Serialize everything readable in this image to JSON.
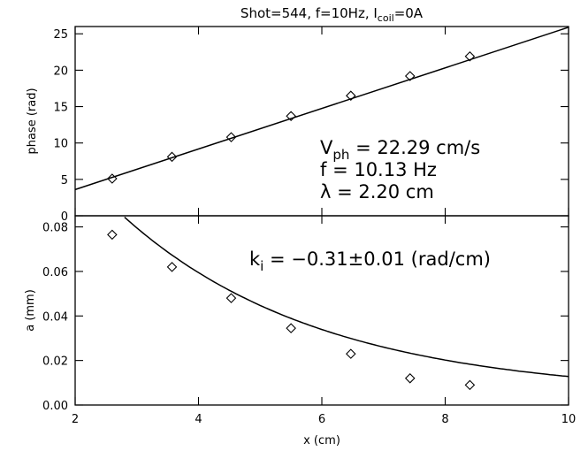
{
  "title": {
    "prefix": "Shot=544, f=10Hz, I",
    "sub": "coil",
    "suffix": "=0A"
  },
  "chart_data": [
    {
      "type": "scatter",
      "panel": "top",
      "ylabel": "phase (rad)",
      "xlim": [
        2,
        10
      ],
      "ylim": [
        0,
        26
      ],
      "yticks": [
        0,
        5,
        10,
        15,
        20,
        25
      ],
      "x": [
        2.6,
        3.57,
        4.53,
        5.5,
        6.47,
        7.43,
        8.4
      ],
      "values": [
        5.1,
        8.1,
        10.8,
        13.7,
        16.5,
        19.2,
        21.9
      ],
      "fit": {
        "type": "linear",
        "x": [
          2,
          10
        ],
        "y": [
          3.6,
          25.9
        ]
      },
      "annotations": {
        "vph": {
          "main": "V",
          "sub": "ph",
          "rest": " = 22.29 cm/s"
        },
        "f": "f = 10.13 Hz",
        "lambda": "λ = 2.20 cm"
      },
      "grid": false
    },
    {
      "type": "scatter",
      "panel": "bottom",
      "xlabel": "x (cm)",
      "ylabel": "a (mm)",
      "xlim": [
        2,
        10
      ],
      "ylim": [
        0,
        0.085
      ],
      "xticks": [
        2,
        4,
        6,
        8,
        10
      ],
      "yticks": [
        "0.00",
        "0.02",
        "0.04",
        "0.06",
        "0.08"
      ],
      "x": [
        2.6,
        3.57,
        4.53,
        5.5,
        6.47,
        7.43,
        8.4
      ],
      "values": [
        0.0765,
        0.062,
        0.048,
        0.0345,
        0.023,
        0.012,
        0.009
      ],
      "fit": {
        "type": "exponential",
        "amplitude": 0.0853,
        "rate": -0.31,
        "x0": 2.6,
        "offset": 0.0042
      },
      "annotations": {
        "ki": {
          "main": "k",
          "sub": "i",
          "rest": " = −0.31±0.01 (rad/cm)"
        }
      },
      "grid": false
    }
  ]
}
